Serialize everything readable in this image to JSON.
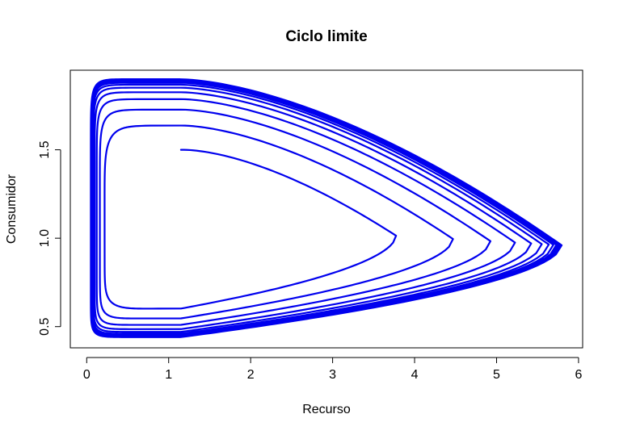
{
  "chart_data": {
    "type": "line",
    "title": "Ciclo limite",
    "xlabel": "Recurso",
    "ylabel": "Consumidor",
    "xlim": [
      -0.2,
      6.05
    ],
    "ylim": [
      0.38,
      1.95
    ],
    "x_ticks": [
      0,
      1,
      2,
      3,
      4,
      5,
      6
    ],
    "y_ticks": [
      0.5,
      1.0,
      1.5
    ],
    "x_tick_labels": [
      "0",
      "1",
      "2",
      "3",
      "4",
      "5",
      "6"
    ],
    "y_tick_labels": [
      "0.5",
      "1.0",
      "1.5"
    ],
    "grid": false,
    "legend": "none",
    "line_color": "#0000ee",
    "series": [
      {
        "start": [
          1.1,
          1.5
        ],
        "limit_cycle": {
          "x_min": 0.05,
          "x_max": 5.8,
          "y_min": 0.44,
          "y_max": 1.9,
          "x_at_y_max": 1.15,
          "x_at_y_min": 1.15,
          "y_at_x_max": 0.96,
          "y_at_x_min": 1.0
        },
        "turns_to_converge": 9
      }
    ]
  }
}
